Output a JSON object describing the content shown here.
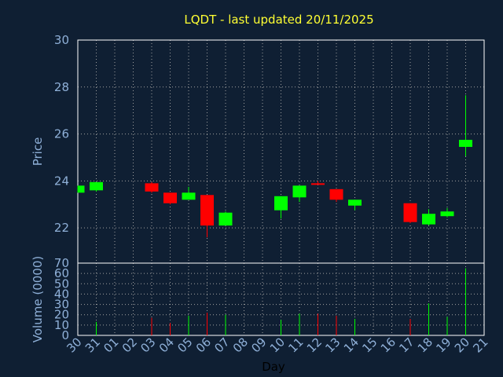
{
  "chart_data": {
    "type": "candlestick",
    "title": "LQDT - last updated 20/11/2025",
    "xlabel": "Day",
    "price_ylabel": "Price",
    "volume_ylabel": "Volume (0000)",
    "x_ticks": [
      "30",
      "31",
      "01",
      "02",
      "03",
      "04",
      "05",
      "06",
      "07",
      "08",
      "09",
      "10",
      "11",
      "12",
      "13",
      "14",
      "15",
      "16",
      "17",
      "18",
      "19",
      "20",
      "21"
    ],
    "price_ylim": [
      20.5,
      30
    ],
    "price_yticks": [
      "22",
      "24",
      "26",
      "28",
      "30"
    ],
    "price_ytick_values": [
      22,
      24,
      26,
      28,
      30
    ],
    "volume_ylim": [
      0,
      70
    ],
    "volume_yticks": [
      "0",
      "10",
      "20",
      "30",
      "40",
      "50",
      "60",
      "70"
    ],
    "volume_ytick_values": [
      0,
      10,
      20,
      30,
      40,
      50,
      60,
      70
    ],
    "grid": true,
    "colors": {
      "background": "#0f1f33",
      "up": "#00ff00",
      "down": "#ff0000",
      "title": "#ffff33",
      "axis_text": "#8fb0d8",
      "xlabel": "#000000",
      "grid": "#a0a0a0"
    },
    "candles": [
      {
        "day": "30",
        "open": 23.5,
        "close": 23.8,
        "high": 23.8,
        "low": 23.5,
        "volume": 0
      },
      {
        "day": "31",
        "open": 23.6,
        "close": 23.95,
        "high": 23.95,
        "low": 23.55,
        "volume": 13
      },
      {
        "day": "03",
        "open": 23.9,
        "close": 23.55,
        "high": 23.95,
        "low": 23.5,
        "volume": 17
      },
      {
        "day": "04",
        "open": 23.5,
        "close": 23.05,
        "high": 23.5,
        "low": 23.0,
        "volume": 12
      },
      {
        "day": "05",
        "open": 23.2,
        "close": 23.5,
        "high": 23.75,
        "low": 23.2,
        "volume": 19
      },
      {
        "day": "06",
        "open": 23.4,
        "close": 22.1,
        "high": 23.4,
        "low": 21.6,
        "volume": 22
      },
      {
        "day": "07",
        "open": 22.1,
        "close": 22.65,
        "high": 22.7,
        "low": 22.1,
        "volume": 20
      },
      {
        "day": "10",
        "open": 22.75,
        "close": 23.35,
        "high": 23.35,
        "low": 22.4,
        "volume": 15
      },
      {
        "day": "11",
        "open": 23.3,
        "close": 23.8,
        "high": 23.8,
        "low": 23.1,
        "volume": 21
      },
      {
        "day": "12",
        "open": 23.9,
        "close": 23.85,
        "high": 24.0,
        "low": 23.85,
        "volume": 21
      },
      {
        "day": "13",
        "open": 23.65,
        "close": 23.2,
        "high": 23.65,
        "low": 23.1,
        "volume": 19
      },
      {
        "day": "14",
        "open": 22.95,
        "close": 23.2,
        "high": 23.2,
        "low": 22.75,
        "volume": 16
      },
      {
        "day": "17",
        "open": 23.05,
        "close": 22.25,
        "high": 23.05,
        "low": 22.2,
        "volume": 16
      },
      {
        "day": "18",
        "open": 22.15,
        "close": 22.6,
        "high": 22.8,
        "low": 22.1,
        "volume": 31
      },
      {
        "day": "19",
        "open": 22.5,
        "close": 22.7,
        "high": 22.85,
        "low": 22.45,
        "volume": 18
      },
      {
        "day": "20",
        "open": 25.45,
        "close": 25.75,
        "high": 27.65,
        "low": 25.05,
        "volume": 65
      }
    ]
  }
}
